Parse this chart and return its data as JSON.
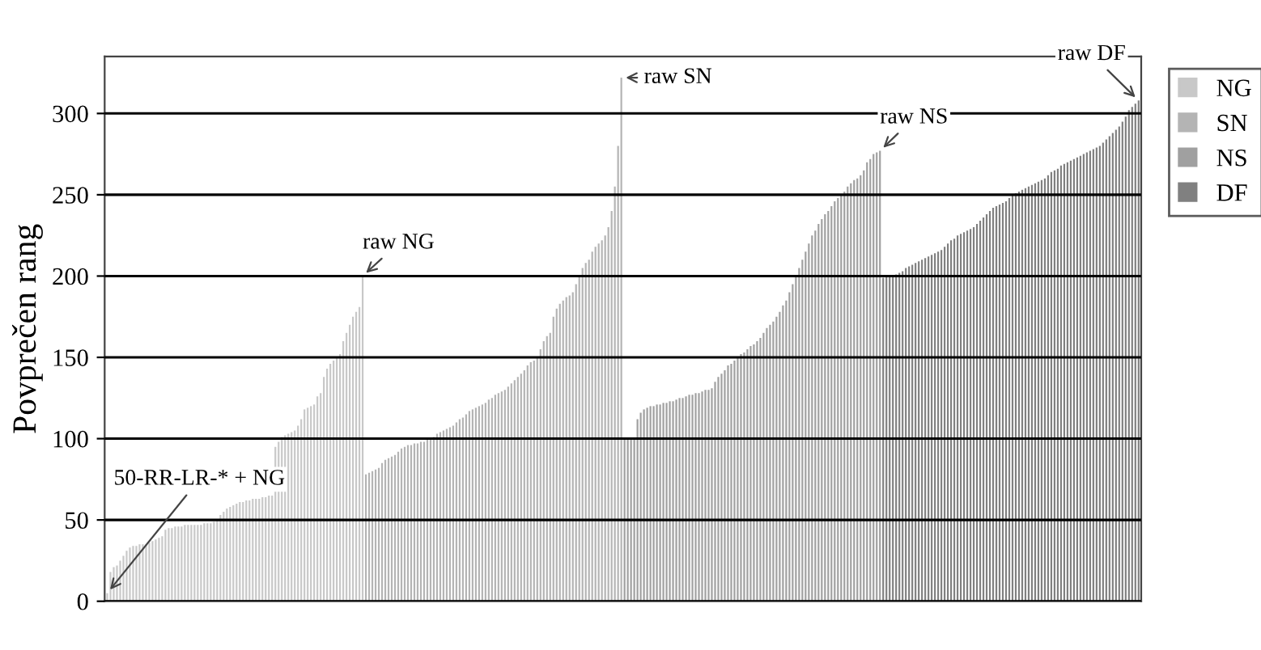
{
  "chart_data": {
    "type": "bar",
    "ylabel": "Povprečen rang",
    "ylim": [
      0,
      335
    ],
    "yticks": [
      0,
      50,
      100,
      150,
      200,
      250,
      300
    ],
    "grid": "y",
    "legend": "top right",
    "categories": [
      null,
      null,
      null,
      null,
      null,
      null,
      null,
      null,
      null,
      null,
      null,
      null,
      null,
      null,
      null,
      null,
      null,
      null,
      null,
      null,
      null,
      null,
      null,
      null,
      null,
      null,
      null,
      null,
      null,
      null,
      null,
      null,
      null,
      null,
      null,
      null,
      null,
      null,
      null,
      null,
      null,
      null,
      null,
      null,
      null,
      null,
      null,
      null,
      null,
      null,
      null,
      null,
      null,
      null,
      null,
      null,
      null,
      null,
      null,
      null,
      null,
      null,
      null,
      null,
      null,
      null,
      null,
      null,
      null,
      null,
      null,
      null,
      null,
      null,
      null,
      null,
      null,
      null,
      null,
      null,
      null,
      null,
      null,
      null,
      null,
      null,
      null,
      null,
      null,
      null,
      null,
      null,
      null,
      null,
      null,
      null,
      null,
      null,
      null,
      null,
      null,
      null,
      null,
      null,
      null,
      null,
      null,
      null,
      null,
      null,
      null,
      null,
      null,
      null,
      null,
      null,
      null,
      null,
      null,
      null,
      null,
      null,
      null,
      null,
      null,
      null,
      null,
      null,
      null,
      null,
      null,
      null,
      null,
      null,
      null,
      null,
      null,
      null,
      null,
      null,
      null,
      null,
      null,
      null,
      null,
      null,
      null,
      null,
      null,
      null,
      null,
      null,
      null,
      null,
      null,
      null,
      null,
      null,
      null,
      null,
      null,
      null,
      null,
      null,
      null,
      null,
      null,
      null,
      null,
      null,
      null,
      null,
      null,
      null,
      null,
      null,
      null,
      null,
      null,
      null,
      null,
      null,
      null,
      null,
      null,
      null,
      null,
      null,
      null,
      null,
      null,
      null,
      null,
      null,
      null,
      null,
      null,
      null,
      null,
      null,
      null,
      null,
      null,
      null,
      null,
      null,
      null,
      null,
      null,
      null,
      null,
      null,
      null,
      null,
      null,
      null,
      null,
      null,
      null,
      null,
      null,
      null,
      null,
      null,
      null,
      null,
      null,
      null,
      null,
      null,
      null,
      null,
      null,
      null,
      null,
      null,
      null,
      null,
      null,
      null,
      null,
      null,
      null,
      null,
      null,
      null,
      null,
      null,
      null,
      null,
      null,
      null,
      null,
      null,
      null,
      null,
      null,
      null,
      null,
      null,
      null,
      null,
      null,
      null,
      null,
      null,
      null,
      null,
      null,
      null,
      null,
      null,
      null,
      null,
      null,
      null,
      null,
      null,
      null,
      null,
      null,
      null,
      null,
      null,
      null,
      null,
      null,
      null,
      null,
      null,
      null,
      null,
      null,
      null,
      null,
      null,
      null,
      null,
      null,
      null,
      null,
      null,
      null,
      null,
      null,
      null,
      null,
      null,
      null,
      null,
      null,
      null,
      null,
      null,
      null,
      null,
      null,
      null,
      null,
      null
    ],
    "series": [
      {
        "name": "NG",
        "color": "#c8c8c8",
        "values": [
          5,
          18,
          21,
          22,
          25,
          28,
          31,
          33,
          34,
          34,
          35,
          35,
          35,
          36,
          37,
          38,
          39,
          40,
          44,
          45,
          45,
          46,
          46,
          46,
          47,
          47,
          47,
          47,
          47,
          47,
          48,
          48,
          48,
          49,
          50,
          53,
          55,
          57,
          58,
          59,
          60,
          61,
          61,
          62,
          62,
          63,
          63,
          63,
          64,
          64,
          65,
          65,
          95,
          98,
          101,
          102,
          103,
          104,
          105,
          108,
          112,
          118,
          119,
          120,
          121,
          126,
          128,
          138,
          143,
          146,
          148,
          150,
          152,
          160,
          165,
          170,
          175,
          178,
          181,
          200,
          null,
          null,
          null,
          null,
          null,
          null,
          null,
          null,
          null,
          null,
          null,
          null,
          null,
          null,
          null,
          null,
          null,
          null,
          null,
          null,
          null,
          null,
          null,
          null,
          null,
          null,
          null,
          null,
          null,
          null,
          null,
          null,
          null,
          null,
          null,
          null,
          null,
          null,
          null,
          null,
          null,
          null,
          null,
          null,
          null,
          null,
          null,
          null,
          null,
          null,
          null,
          null,
          null,
          null,
          null,
          null,
          null,
          null,
          null,
          null,
          null,
          null,
          null,
          null,
          null,
          null,
          null,
          null,
          null,
          null,
          null,
          null,
          null,
          null,
          null,
          null,
          null,
          null,
          null,
          null,
          null,
          null,
          null,
          null,
          null,
          null,
          null,
          null,
          null,
          null,
          null,
          null,
          null,
          null,
          null,
          null,
          null,
          null,
          null,
          null,
          null,
          null,
          null,
          null,
          null,
          null,
          null,
          null,
          null,
          null,
          null,
          null,
          null,
          null,
          null,
          null,
          null,
          null,
          null,
          null,
          null,
          null,
          null,
          null,
          null,
          null,
          null,
          null,
          null,
          null,
          null,
          null,
          null,
          null,
          null,
          null,
          null,
          null,
          null,
          null,
          null,
          null,
          null,
          null,
          null,
          null,
          null,
          null,
          null,
          null,
          null,
          null,
          null,
          null,
          null,
          null,
          null,
          null,
          null,
          null,
          null,
          null,
          null,
          null,
          null,
          null,
          null,
          null,
          null,
          null,
          null,
          null,
          null,
          null,
          null,
          null,
          null,
          null,
          null,
          null,
          null,
          null,
          null,
          null,
          null,
          null,
          null,
          null,
          null,
          null,
          null,
          null,
          null,
          null,
          null,
          null,
          null,
          null,
          null,
          null,
          null,
          null,
          null,
          null,
          null,
          null,
          null,
          null,
          null,
          null,
          null,
          null,
          null,
          null,
          null,
          null,
          null,
          null,
          null,
          null,
          null,
          null,
          null,
          null,
          null,
          null,
          null,
          null,
          null,
          null,
          null,
          null,
          null,
          null,
          null,
          null,
          null,
          null,
          null,
          null
        ]
      },
      {
        "name": "SN",
        "color": "#b4b4b4",
        "values": [
          null,
          null,
          null,
          null,
          null,
          null,
          null,
          null,
          null,
          null,
          null,
          null,
          null,
          null,
          null,
          null,
          null,
          null,
          null,
          null,
          null,
          null,
          null,
          null,
          null,
          null,
          null,
          null,
          null,
          null,
          null,
          null,
          null,
          null,
          null,
          null,
          null,
          null,
          null,
          null,
          null,
          null,
          null,
          null,
          null,
          null,
          null,
          null,
          null,
          null,
          null,
          null,
          null,
          null,
          null,
          null,
          null,
          null,
          null,
          null,
          null,
          null,
          null,
          null,
          null,
          null,
          null,
          null,
          null,
          null,
          null,
          null,
          null,
          null,
          null,
          null,
          null,
          null,
          null,
          null,
          78,
          79,
          80,
          81,
          82,
          85,
          87,
          88,
          89,
          90,
          92,
          94,
          95,
          96,
          96,
          97,
          97,
          98,
          98,
          100,
          100,
          101,
          103,
          104,
          105,
          106,
          107,
          108,
          110,
          112,
          113,
          115,
          117,
          118,
          119,
          120,
          121,
          122,
          124,
          125,
          127,
          128,
          129,
          130,
          132,
          134,
          136,
          138,
          140,
          142,
          145,
          147,
          148,
          150,
          155,
          160,
          163,
          165,
          175,
          180,
          183,
          185,
          187,
          188,
          190,
          195,
          200,
          205,
          208,
          210,
          215,
          218,
          220,
          222,
          225,
          230,
          240,
          255,
          280,
          322,
          null,
          null,
          null,
          null,
          null,
          null,
          null,
          null,
          null,
          null,
          null,
          null,
          null,
          null,
          null,
          null,
          null,
          null,
          null,
          null,
          null,
          null,
          null,
          null,
          null,
          null,
          null,
          null,
          null,
          null,
          null,
          null,
          null,
          null,
          null,
          null,
          null,
          null,
          null,
          null,
          null,
          null,
          null,
          null,
          null,
          null,
          null,
          null,
          null,
          null,
          null,
          null,
          null,
          null,
          null,
          null,
          null,
          null,
          null,
          null,
          null,
          null,
          null,
          null,
          null,
          null,
          null,
          null,
          null,
          null,
          null,
          null,
          null,
          null,
          null,
          null,
          null,
          null,
          null,
          null,
          null,
          null,
          null,
          null,
          null,
          null,
          null,
          null,
          null,
          null,
          null,
          null,
          null,
          null,
          null,
          null,
          null,
          null,
          null,
          null,
          null,
          null,
          null,
          null,
          null,
          null,
          null,
          null,
          null,
          null,
          null,
          null,
          null,
          null,
          null,
          null,
          null,
          null,
          null,
          null,
          null,
          null,
          null,
          null,
          null,
          null,
          null,
          null,
          null,
          null,
          null,
          null,
          null,
          null,
          null,
          null,
          null,
          null,
          null,
          null,
          null,
          null,
          null,
          null,
          null,
          null,
          null,
          null,
          null,
          null,
          null,
          null,
          null,
          null,
          null,
          null,
          null,
          null,
          null,
          null
        ]
      },
      {
        "name": "NS",
        "color": "#a0a0a0",
        "values": [
          null,
          null,
          null,
          null,
          null,
          null,
          null,
          null,
          null,
          null,
          null,
          null,
          null,
          null,
          null,
          null,
          null,
          null,
          null,
          null,
          null,
          null,
          null,
          null,
          null,
          null,
          null,
          null,
          null,
          null,
          null,
          null,
          null,
          null,
          null,
          null,
          null,
          null,
          null,
          null,
          null,
          null,
          null,
          null,
          null,
          null,
          null,
          null,
          null,
          null,
          null,
          null,
          null,
          null,
          null,
          null,
          null,
          null,
          null,
          null,
          null,
          null,
          null,
          null,
          null,
          null,
          null,
          null,
          null,
          null,
          null,
          null,
          null,
          null,
          null,
          null,
          null,
          null,
          null,
          null,
          null,
          null,
          null,
          null,
          null,
          null,
          null,
          null,
          null,
          null,
          null,
          null,
          null,
          null,
          null,
          null,
          null,
          null,
          null,
          null,
          null,
          null,
          null,
          null,
          null,
          null,
          null,
          null,
          null,
          null,
          null,
          null,
          null,
          null,
          null,
          null,
          null,
          null,
          null,
          null,
          null,
          null,
          null,
          null,
          null,
          null,
          null,
          null,
          null,
          null,
          null,
          null,
          null,
          null,
          null,
          null,
          null,
          null,
          null,
          null,
          null,
          null,
          null,
          null,
          null,
          null,
          null,
          null,
          null,
          null,
          null,
          null,
          null,
          null,
          null,
          null,
          null,
          null,
          null,
          null,
          100,
          100,
          100,
          100,
          112,
          116,
          118,
          119,
          120,
          120,
          121,
          121,
          122,
          122,
          123,
          123,
          124,
          125,
          125,
          126,
          127,
          127,
          128,
          128,
          129,
          130,
          130,
          131,
          135,
          138,
          140,
          142,
          145,
          146,
          148,
          150,
          152,
          153,
          155,
          157,
          158,
          160,
          162,
          165,
          168,
          170,
          172,
          175,
          178,
          182,
          185,
          190,
          195,
          200,
          205,
          210,
          215,
          220,
          225,
          228,
          232,
          235,
          238,
          240,
          243,
          246,
          248,
          250,
          252,
          255,
          257,
          259,
          260,
          262,
          265,
          270,
          272,
          275,
          276,
          277,
          null,
          null,
          null,
          null,
          null,
          null,
          null,
          null,
          null,
          null,
          null,
          null,
          null,
          null,
          null,
          null,
          null,
          null,
          null,
          null,
          null,
          null,
          null,
          null,
          null,
          null,
          null,
          null,
          null,
          null,
          null,
          null,
          null,
          null,
          null,
          null,
          null,
          null,
          null,
          null,
          null,
          null,
          null,
          null,
          null,
          null,
          null,
          null,
          null,
          null,
          null,
          null,
          null,
          null,
          null,
          null,
          null,
          null,
          null,
          null,
          null,
          null,
          null,
          null,
          null,
          null,
          null,
          null,
          null,
          null,
          null,
          null,
          null,
          null,
          null,
          null,
          null,
          null,
          null,
          null
        ]
      },
      {
        "name": "DF",
        "color": "#808080",
        "values": [
          null,
          null,
          null,
          null,
          null,
          null,
          null,
          null,
          null,
          null,
          null,
          null,
          null,
          null,
          null,
          null,
          null,
          null,
          null,
          null,
          null,
          null,
          null,
          null,
          null,
          null,
          null,
          null,
          null,
          null,
          null,
          null,
          null,
          null,
          null,
          null,
          null,
          null,
          null,
          null,
          null,
          null,
          null,
          null,
          null,
          null,
          null,
          null,
          null,
          null,
          null,
          null,
          null,
          null,
          null,
          null,
          null,
          null,
          null,
          null,
          null,
          null,
          null,
          null,
          null,
          null,
          null,
          null,
          null,
          null,
          null,
          null,
          null,
          null,
          null,
          null,
          null,
          null,
          null,
          null,
          null,
          null,
          null,
          null,
          null,
          null,
          null,
          null,
          null,
          null,
          null,
          null,
          null,
          null,
          null,
          null,
          null,
          null,
          null,
          null,
          null,
          null,
          null,
          null,
          null,
          null,
          null,
          null,
          null,
          null,
          null,
          null,
          null,
          null,
          null,
          null,
          null,
          null,
          null,
          null,
          null,
          null,
          null,
          null,
          null,
          null,
          null,
          null,
          null,
          null,
          null,
          null,
          null,
          null,
          null,
          null,
          null,
          null,
          null,
          null,
          null,
          null,
          null,
          null,
          null,
          null,
          null,
          null,
          null,
          null,
          null,
          null,
          null,
          null,
          null,
          null,
          null,
          null,
          null,
          null,
          null,
          null,
          null,
          null,
          null,
          null,
          null,
          null,
          null,
          null,
          null,
          null,
          null,
          null,
          null,
          null,
          null,
          null,
          null,
          null,
          null,
          null,
          null,
          null,
          null,
          null,
          null,
          null,
          null,
          null,
          null,
          null,
          null,
          null,
          null,
          null,
          null,
          null,
          null,
          null,
          null,
          null,
          null,
          null,
          null,
          null,
          null,
          null,
          null,
          null,
          null,
          null,
          null,
          null,
          null,
          null,
          null,
          null,
          null,
          null,
          null,
          null,
          null,
          null,
          null,
          null,
          null,
          null,
          null,
          null,
          null,
          null,
          null,
          null,
          null,
          null,
          null,
          null,
          null,
          null,
          199,
          200,
          200,
          200,
          201,
          202,
          203,
          205,
          206,
          207,
          208,
          209,
          210,
          211,
          212,
          213,
          214,
          215,
          216,
          218,
          220,
          222,
          223,
          225,
          226,
          227,
          228,
          229,
          230,
          232,
          234,
          236,
          238,
          240,
          242,
          243,
          244,
          245,
          246,
          248,
          250,
          251,
          252,
          253,
          254,
          255,
          256,
          257,
          258,
          259,
          260,
          262,
          264,
          265,
          266,
          268,
          269,
          270,
          271,
          272,
          273,
          274,
          275,
          276,
          277,
          278,
          279,
          280,
          282,
          284,
          286,
          288,
          290,
          292,
          295,
          298,
          302,
          304,
          306,
          308
        ]
      }
    ],
    "annotations": [
      "50-RR-LR-* + NG",
      "raw NG",
      "raw SN",
      "raw NS",
      "raw DF"
    ]
  }
}
